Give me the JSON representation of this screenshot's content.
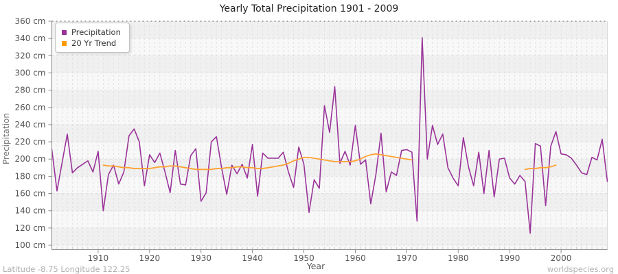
{
  "title": "Yearly Total Precipitation 1901 - 2009",
  "x_axis_label": "Year",
  "y_axis_label": "Precipitation",
  "footer_left": "Latitude -8.75 Longitude 122.25",
  "footer_right": "worldspecies.org",
  "legend": {
    "position": "top-left",
    "items": [
      {
        "label": "Precipitation",
        "color": "#993399"
      },
      {
        "label": "20 Yr Trend",
        "color": "#FF9900"
      }
    ]
  },
  "colors": {
    "precipitation_line": "#993399",
    "trend_line": "#FFA233",
    "plot_band_dark": "#f0f0f0",
    "plot_band_light": "#f8f8f8",
    "gridline": "#e2e2e2",
    "axis": "#888888",
    "tick_label": "#555555",
    "top_boundary": "#555555"
  },
  "y_tick_labels": [
    "100 cm",
    "120 cm",
    "140 cm",
    "160 cm",
    "180 cm",
    "200 cm",
    "220 cm",
    "240 cm",
    "260 cm",
    "280 cm",
    "300 cm",
    "320 cm",
    "340 cm",
    "360 cm"
  ],
  "x_tick_labels": [
    "1910",
    "1920",
    "1930",
    "1940",
    "1950",
    "1960",
    "1970",
    "1980",
    "1990",
    "2000"
  ],
  "chart_data": {
    "type": "line",
    "title": "Yearly Total Precipitation 1901 - 2009",
    "xlabel": "Year",
    "ylabel": "Precipitation",
    "x_range": [
      1901,
      2009
    ],
    "ylim": [
      100,
      360
    ],
    "y_tick_step": 20,
    "y_tick_unit": "cm",
    "x_ticks": [
      1910,
      1920,
      1930,
      1940,
      1950,
      1960,
      1970,
      1980,
      1990,
      2000
    ],
    "grid": true,
    "legend_position": "top-left",
    "series": [
      {
        "name": "Precipitation",
        "color": "#993399",
        "start_year": 1901,
        "step": 1,
        "values": [
          211,
          163,
          196,
          229,
          184,
          190,
          194,
          198,
          185,
          209,
          140,
          182,
          193,
          171,
          185,
          227,
          235,
          220,
          169,
          205,
          196,
          207,
          185,
          161,
          210,
          171,
          170,
          204,
          212,
          151,
          161,
          220,
          226,
          190,
          159,
          193,
          183,
          194,
          178,
          217,
          157,
          207,
          201,
          201,
          201,
          208,
          185,
          167,
          214,
          194,
          138,
          176,
          166,
          262,
          231,
          284,
          195,
          209,
          193,
          239,
          194,
          199,
          148,
          182,
          230,
          162,
          185,
          181,
          210,
          211,
          208,
          128,
          341,
          200,
          239,
          217,
          229,
          190,
          178,
          169,
          225,
          191,
          169,
          208,
          160,
          210,
          156,
          200,
          201,
          178,
          171,
          181,
          174,
          114,
          218,
          215,
          146,
          215,
          232,
          206,
          205,
          201,
          193,
          184,
          182,
          202,
          199,
          223,
          174
        ]
      },
      {
        "name": "20 Yr Trend",
        "color": "#FFA233",
        "segments": [
          {
            "start_year": 1911,
            "step": 1,
            "values": [
              193,
              192,
              192,
              191,
              190,
              190,
              189,
              189,
              189,
              189,
              190,
              191,
              191,
              192,
              192,
              191,
              190,
              189,
              188,
              188,
              188,
              188,
              189,
              189,
              190,
              190,
              191,
              191,
              190,
              190,
              189,
              189,
              190,
              191,
              192,
              193,
              195,
              198,
              200,
              202,
              202,
              201,
              200,
              199,
              198,
              197,
              197,
              197,
              197,
              198,
              200,
              203,
              205,
              206,
              205,
              204,
              203,
              202,
              201,
              200,
              199
            ]
          },
          {
            "start_year": 1993,
            "step": 1,
            "values": [
              188,
              189,
              189,
              190,
              190,
              191,
              193
            ]
          }
        ]
      }
    ]
  }
}
